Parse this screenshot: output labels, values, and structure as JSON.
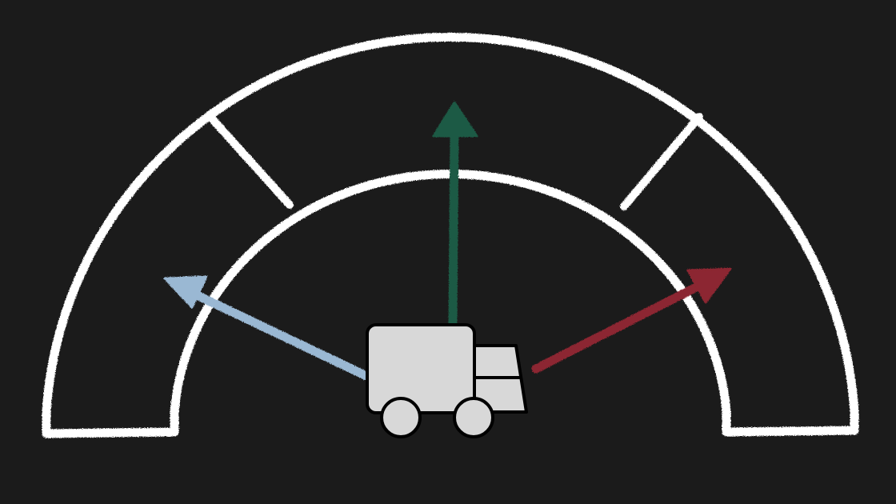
{
  "diagram": {
    "background_color": "#1b1b1b",
    "gauge": {
      "outline_color": "#ffffff",
      "sections": [
        "left-zone",
        "center-zone",
        "right-zone"
      ]
    },
    "arrows": [
      {
        "id": "left",
        "direction": "up-left",
        "color": "#9ab8d3"
      },
      {
        "id": "up",
        "direction": "up",
        "color": "#1e5a44"
      },
      {
        "id": "right",
        "direction": "up-right",
        "color": "#8c2630"
      }
    ],
    "vehicle": {
      "icon": "truck-icon",
      "fill": "#d8d8d8",
      "outline": "#000000"
    }
  }
}
